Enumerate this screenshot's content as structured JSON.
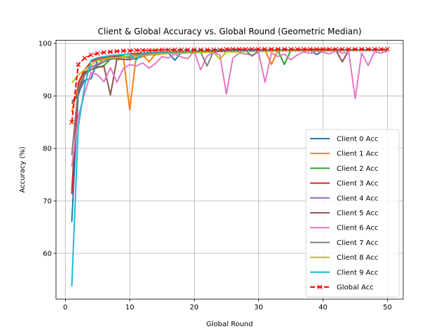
{
  "chart_data": {
    "type": "line",
    "title": "Client & Global Accuracy vs. Global Round (Geometric Median)",
    "xlabel": "Global Round",
    "ylabel": "Accuracy (%)",
    "xlim": [
      -1.45,
      52.45
    ],
    "ylim": [
      51.3,
      100.6
    ],
    "xticks": [
      0,
      10,
      20,
      30,
      40,
      50
    ],
    "yticks": [
      60,
      70,
      80,
      90,
      100
    ],
    "grid": true,
    "legend_position": "lower-right",
    "x": [
      1,
      2,
      3,
      4,
      5,
      6,
      7,
      8,
      9,
      10,
      11,
      12,
      13,
      14,
      15,
      16,
      17,
      18,
      19,
      20,
      21,
      22,
      23,
      24,
      25,
      26,
      27,
      28,
      29,
      30,
      31,
      32,
      33,
      34,
      35,
      36,
      37,
      38,
      39,
      40,
      41,
      42,
      43,
      44,
      45,
      46,
      47,
      48,
      49,
      50
    ],
    "series": [
      {
        "name": "Client 0 Acc",
        "color": "#1f77b4",
        "marker": "none",
        "dashed": false,
        "values": [
          66.0,
          90.5,
          93.0,
          93.3,
          96.8,
          96.9,
          97.2,
          97.5,
          97.6,
          97.3,
          97.8,
          97.6,
          98.0,
          97.9,
          98.1,
          98.2,
          96.8,
          98.3,
          98.4,
          98.3,
          98.4,
          98.5,
          98.4,
          98.5,
          98.6,
          98.5,
          98.6,
          98.6,
          98.7,
          98.6,
          98.7,
          98.6,
          98.7,
          98.7,
          98.6,
          98.7,
          98.8,
          98.7,
          97.9,
          98.6,
          98.7,
          98.8,
          98.7,
          98.7,
          98.8,
          98.7,
          98.8,
          98.8,
          98.8,
          98.8
        ]
      },
      {
        "name": "Client 1 Acc",
        "color": "#ff7f0e",
        "marker": "none",
        "dashed": false,
        "values": [
          87.0,
          92.0,
          94.5,
          95.5,
          96.0,
          97.0,
          97.3,
          96.9,
          97.5,
          87.3,
          97.6,
          97.8,
          96.5,
          98.0,
          98.1,
          98.2,
          98.0,
          98.3,
          98.3,
          98.4,
          98.5,
          98.4,
          98.5,
          98.5,
          98.6,
          98.5,
          98.6,
          98.7,
          98.6,
          98.7,
          98.7,
          96.0,
          98.7,
          98.7,
          98.7,
          98.8,
          98.7,
          98.8,
          98.8,
          98.7,
          98.8,
          98.8,
          98.8,
          98.8,
          98.8,
          98.8,
          98.8,
          98.8,
          98.8,
          98.8
        ]
      },
      {
        "name": "Client 2 Acc",
        "color": "#2ca02c",
        "marker": "none",
        "dashed": false,
        "values": [
          72.0,
          91.5,
          94.0,
          95.0,
          95.4,
          95.8,
          97.0,
          97.3,
          97.5,
          97.6,
          97.8,
          97.9,
          98.0,
          98.0,
          98.1,
          98.2,
          98.2,
          98.3,
          98.3,
          98.4,
          98.4,
          98.5,
          98.4,
          98.5,
          98.5,
          98.6,
          98.5,
          98.6,
          98.6,
          98.6,
          98.7,
          98.6,
          98.7,
          96.0,
          98.7,
          98.7,
          98.7,
          98.8,
          98.7,
          98.8,
          98.8,
          98.8,
          98.8,
          98.8,
          98.8,
          98.8,
          98.8,
          98.8,
          98.8,
          98.8
        ]
      },
      {
        "name": "Client 3 Acc",
        "color": "#d62728",
        "marker": "none",
        "dashed": false,
        "values": [
          71.3,
          92.5,
          95.0,
          96.5,
          97.0,
          97.3,
          97.5,
          97.7,
          97.9,
          98.0,
          98.1,
          98.2,
          98.3,
          98.3,
          98.4,
          98.4,
          98.5,
          98.5,
          98.5,
          98.6,
          98.6,
          98.6,
          98.7,
          98.7,
          98.7,
          98.7,
          98.7,
          98.7,
          98.8,
          98.8,
          98.8,
          98.8,
          98.8,
          98.8,
          98.8,
          98.8,
          98.8,
          98.8,
          98.8,
          98.8,
          98.8,
          98.8,
          98.8,
          98.8,
          98.8,
          98.8,
          98.8,
          98.8,
          98.8,
          98.8
        ]
      },
      {
        "name": "Client 4 Acc",
        "color": "#9467bd",
        "marker": "none",
        "dashed": false,
        "values": [
          89.0,
          90.0,
          94.0,
          95.5,
          96.0,
          96.5,
          97.0,
          97.2,
          97.5,
          97.6,
          97.7,
          97.9,
          98.0,
          98.0,
          98.1,
          98.2,
          98.2,
          98.3,
          98.3,
          98.4,
          98.4,
          98.5,
          98.5,
          98.5,
          98.6,
          98.6,
          98.6,
          98.6,
          98.7,
          98.7,
          98.7,
          98.7,
          98.7,
          98.7,
          98.7,
          98.8,
          98.8,
          98.8,
          98.8,
          98.8,
          98.8,
          98.8,
          98.8,
          98.8,
          98.8,
          98.8,
          98.8,
          98.8,
          98.8,
          98.8
        ]
      },
      {
        "name": "Client 5 Acc",
        "color": "#8c564b",
        "marker": "none",
        "dashed": false,
        "values": [
          88.5,
          90.5,
          94.5,
          95.0,
          95.5,
          95.6,
          90.2,
          97.0,
          97.0,
          96.9,
          97.2,
          97.5,
          97.8,
          97.9,
          98.0,
          98.1,
          98.1,
          98.2,
          98.3,
          98.3,
          98.3,
          98.4,
          98.4,
          98.5,
          98.5,
          98.5,
          98.5,
          98.6,
          98.6,
          98.6,
          98.6,
          98.6,
          98.7,
          98.7,
          98.7,
          98.7,
          98.7,
          98.7,
          98.7,
          98.7,
          98.7,
          98.7,
          96.5,
          98.7,
          98.7,
          98.7,
          98.7,
          98.8,
          98.8,
          98.8
        ]
      },
      {
        "name": "Client 6 Acc",
        "color": "#e377c2",
        "marker": "none",
        "dashed": false,
        "values": [
          76.5,
          86.0,
          90.5,
          94.5,
          94.0,
          92.7,
          95.4,
          92.6,
          95.2,
          96.0,
          95.7,
          96.3,
          95.3,
          96.2,
          97.5,
          97.2,
          98.0,
          97.4,
          97.1,
          98.5,
          95.0,
          97.6,
          98.3,
          97.8,
          90.4,
          97.2,
          98.2,
          98.0,
          97.8,
          98.3,
          92.6,
          98.2,
          97.5,
          98.0,
          96.9,
          97.8,
          98.4,
          98.1,
          98.6,
          98.3,
          98.0,
          98.6,
          98.2,
          98.3,
          89.5,
          98.2,
          95.8,
          98.4,
          98.2,
          98.5
        ]
      },
      {
        "name": "Client 7 Acc",
        "color": "#7f7f7f",
        "marker": "none",
        "dashed": false,
        "values": [
          78.7,
          91.5,
          94.0,
          95.0,
          95.8,
          96.5,
          97.0,
          97.2,
          97.5,
          97.2,
          97.7,
          97.8,
          97.9,
          98.0,
          98.1,
          98.2,
          98.2,
          98.3,
          98.3,
          98.4,
          98.4,
          95.7,
          98.5,
          98.5,
          98.5,
          98.6,
          98.6,
          98.6,
          97.6,
          98.6,
          98.7,
          98.7,
          98.7,
          98.7,
          98.7,
          98.7,
          98.7,
          98.8,
          98.7,
          98.8,
          98.8,
          98.8,
          98.8,
          98.8,
          98.8,
          98.8,
          98.8,
          98.8,
          98.8,
          98.8
        ]
      },
      {
        "name": "Client 8 Acc",
        "color": "#bcbd22",
        "marker": "none",
        "dashed": false,
        "values": [
          92.5,
          94.0,
          95.0,
          95.9,
          96.8,
          97.0,
          97.3,
          97.3,
          97.5,
          97.6,
          97.6,
          97.6,
          97.8,
          98.0,
          98.0,
          98.1,
          98.1,
          98.1,
          98.2,
          98.2,
          98.3,
          98.3,
          98.3,
          97.0,
          98.4,
          98.4,
          98.4,
          98.5,
          98.5,
          98.5,
          98.5,
          98.5,
          98.6,
          98.6,
          98.6,
          98.6,
          98.6,
          98.6,
          98.6,
          98.6,
          98.6,
          98.7,
          98.7,
          98.7,
          98.7,
          98.7,
          98.7,
          98.7,
          98.7,
          98.7
        ]
      },
      {
        "name": "Client 9 Acc",
        "color": "#17becf",
        "marker": "none",
        "dashed": false,
        "values": [
          53.7,
          84.0,
          92.0,
          96.8,
          97.3,
          97.5,
          97.7,
          97.8,
          97.9,
          98.0,
          96.8,
          98.2,
          98.3,
          98.3,
          98.4,
          98.4,
          98.5,
          98.5,
          98.5,
          98.6,
          98.6,
          98.6,
          98.6,
          98.7,
          98.7,
          98.7,
          98.7,
          98.7,
          98.7,
          98.7,
          98.8,
          98.8,
          98.8,
          98.8,
          98.8,
          98.8,
          98.8,
          98.8,
          98.8,
          98.8,
          98.8,
          98.8,
          98.8,
          98.8,
          98.8,
          98.8,
          98.8,
          98.8,
          98.8,
          98.8
        ]
      },
      {
        "name": "Global Acc",
        "color": "#ff0000",
        "marker": "x",
        "dashed": true,
        "values": [
          85.0,
          96.0,
          97.2,
          97.8,
          98.1,
          98.3,
          98.4,
          98.5,
          98.6,
          98.6,
          98.7,
          98.7,
          98.7,
          98.7,
          98.8,
          98.8,
          98.8,
          98.8,
          98.8,
          98.8,
          98.8,
          98.8,
          98.8,
          98.8,
          98.9,
          98.9,
          98.9,
          98.9,
          98.9,
          98.9,
          98.9,
          98.9,
          98.9,
          98.9,
          98.9,
          98.9,
          98.9,
          98.9,
          98.9,
          98.9,
          98.9,
          98.9,
          98.9,
          98.9,
          98.9,
          98.9,
          98.9,
          98.9,
          98.9,
          98.9
        ]
      }
    ]
  }
}
